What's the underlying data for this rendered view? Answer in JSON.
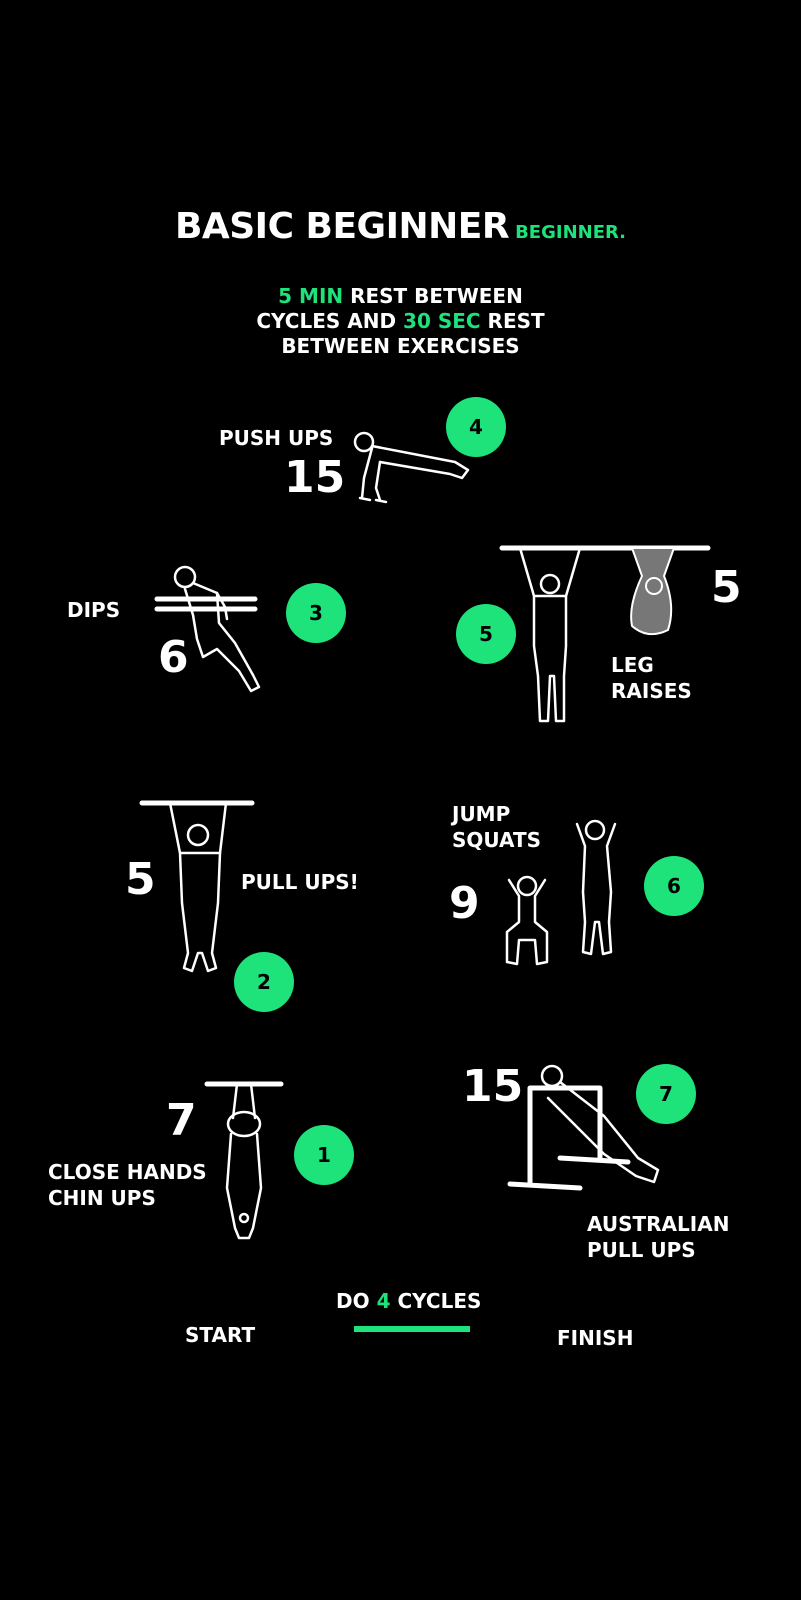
{
  "header": {
    "title": "BASIC BEGINNER",
    "subtitle": "BEGINNER."
  },
  "rest_info": {
    "line1_green": "5 MIN",
    "line1_rest": " REST BETWEEN",
    "line2_a": "CYCLES AND ",
    "line2_green": "30 SEC",
    "line2_b": " REST",
    "line3": "BETWEEN EXERCISES"
  },
  "exercises": {
    "push_ups": {
      "label": "PUSH UPS",
      "reps": "15",
      "order": "4"
    },
    "dips": {
      "label": "DIPS",
      "reps": "6",
      "order": "3"
    },
    "leg_raises": {
      "label_line1": "LEG",
      "label_line2": "RAISES",
      "reps": "5",
      "order": "5"
    },
    "pull_ups": {
      "label": "PULL UPS!",
      "reps": "5",
      "order": "2"
    },
    "jump_squats": {
      "label_line1": "JUMP",
      "label_line2": "SQUATS",
      "reps": "9",
      "order": "6"
    },
    "chin_ups": {
      "label_line1": "CLOSE HANDS",
      "label_line2": "CHIN UPS",
      "reps": "7",
      "order": "1"
    },
    "australian": {
      "label_line1": "AUSTRALIAN",
      "label_line2": "PULL UPS",
      "reps": "15",
      "order": "7"
    }
  },
  "footer": {
    "cycles_a": "DO ",
    "cycles_green": "4",
    "cycles_b": " CYCLES",
    "start": "START",
    "finish": "FINISH"
  },
  "colors": {
    "accent": "#1de37a",
    "background": "#000000",
    "text": "#ffffff"
  }
}
